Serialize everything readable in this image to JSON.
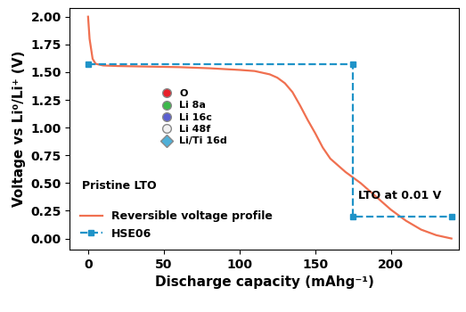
{
  "chart_data": {
    "type": "line",
    "x_label": "Discharge capacity (mAhg⁻¹)",
    "y_label": "Voltage vs Li⁰/Li⁺ (V)",
    "xlim": [
      -12,
      245
    ],
    "ylim": [
      -0.1,
      2.08
    ],
    "xticks": [
      0,
      50,
      100,
      150,
      200
    ],
    "yticks": [
      {
        "value": 0,
        "label": "0.00"
      },
      {
        "value": 0.25,
        "label": "0.25"
      },
      {
        "value": 0.5,
        "label": "0.50"
      },
      {
        "value": 0.75,
        "label": "0.75"
      },
      {
        "value": 1.0,
        "label": "1.00"
      },
      {
        "value": 1.25,
        "label": "1.25"
      },
      {
        "value": 1.5,
        "label": "1.50"
      },
      {
        "value": 1.75,
        "label": "1.75"
      },
      {
        "value": 2.0,
        "label": "2.00"
      }
    ],
    "legend": "lower left",
    "series": [
      {
        "name": "Reversible voltage profile",
        "color": "#f07050",
        "line_style": "solid",
        "x": [
          0,
          1,
          3,
          5,
          10,
          20,
          40,
          60,
          80,
          100,
          110,
          120,
          125,
          130,
          135,
          140,
          145,
          150,
          155,
          160,
          170,
          180,
          190,
          200,
          210,
          220,
          230,
          240
        ],
        "values": [
          2.0,
          1.8,
          1.62,
          1.575,
          1.56,
          1.555,
          1.55,
          1.545,
          1.535,
          1.52,
          1.51,
          1.48,
          1.45,
          1.4,
          1.32,
          1.2,
          1.07,
          0.95,
          0.82,
          0.72,
          0.6,
          0.5,
          0.38,
          0.26,
          0.16,
          0.08,
          0.03,
          0.0
        ]
      },
      {
        "name": "HSE06",
        "color": "#1f93c8",
        "line_style": "dashed",
        "marker": "square",
        "x": [
          0,
          175,
          175,
          240
        ],
        "values": [
          1.575,
          1.575,
          0.2,
          0.2
        ]
      }
    ],
    "annotations": [
      "Pristine LTO",
      "LTO at 0.01 V"
    ],
    "structure_legend": [
      {
        "name": "O",
        "color": "#e8202a",
        "marker": "circle"
      },
      {
        "name": "Li 8a",
        "color": "#3cb84a",
        "marker": "circle"
      },
      {
        "name": "Li 16c",
        "color": "#5b5fd0",
        "marker": "circle"
      },
      {
        "name": "Li 48f",
        "color": "#f2f2f2",
        "marker": "circle"
      },
      {
        "name": "Li/Ti 16d",
        "color": "#4fb0d8",
        "marker": "diamond"
      }
    ]
  }
}
